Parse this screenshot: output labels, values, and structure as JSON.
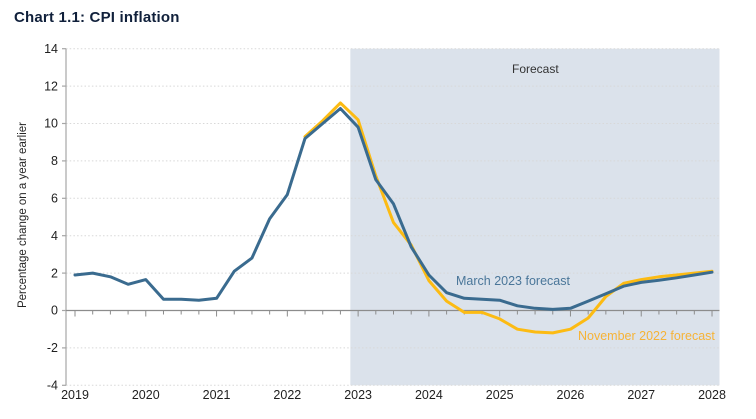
{
  "page": {
    "title": "Chart 1.1: CPI inflation"
  },
  "annotations": {
    "forecast_region_label": "Forecast",
    "series1_label": "March 2023 forecast",
    "series2_label": "November 2022 forecast"
  },
  "colors": {
    "title_text": "#10203b",
    "march_line": "#3a6b8f",
    "march_label_text": "#4a7699",
    "november_line": "#fcbb13",
    "november_label_text": "#f6b337",
    "forecast_shading": "#dbe2eb",
    "gridline": "#d8d8d8",
    "zero_axis": "#8c8c8c",
    "y_axis": "#a6a6a6",
    "tick_text": "#1f1f1f"
  },
  "chart_data": {
    "type": "line",
    "title": "Chart 1.1: CPI inflation",
    "xlabel": "",
    "ylabel": "Percentage change on a year earlier",
    "ylim": [
      -4,
      14
    ],
    "y_ticks": [
      14,
      12,
      10,
      8,
      6,
      4,
      2,
      0,
      -2,
      -4
    ],
    "x_ticks": [
      2019,
      2020,
      2021,
      2022,
      2023,
      2024,
      2025,
      2026,
      2027,
      2028
    ],
    "x_minor_tick_step": 0.25,
    "grid": "horizontal-dotted",
    "legend_position": "inline-annotations",
    "forecast_region": {
      "label": "Forecast",
      "x_start": 2022.89,
      "x_end": 2028.1
    },
    "series": [
      {
        "name": "November 2022 forecast",
        "points": [
          [
            2022.25,
            9.3
          ],
          [
            2022.5,
            10.15
          ],
          [
            2022.75,
            11.1
          ],
          [
            2023.0,
            10.2
          ],
          [
            2023.25,
            7.2
          ],
          [
            2023.5,
            4.7
          ],
          [
            2023.75,
            3.5
          ],
          [
            2024.0,
            1.6
          ],
          [
            2024.25,
            0.5
          ],
          [
            2024.5,
            -0.1
          ],
          [
            2024.75,
            -0.1
          ],
          [
            2025.0,
            -0.45
          ],
          [
            2025.25,
            -1.0
          ],
          [
            2025.5,
            -1.15
          ],
          [
            2025.75,
            -1.2
          ],
          [
            2026.0,
            -1.0
          ],
          [
            2026.25,
            -0.4
          ],
          [
            2026.5,
            0.75
          ],
          [
            2026.75,
            1.45
          ],
          [
            2027.0,
            1.65
          ],
          [
            2027.25,
            1.8
          ],
          [
            2027.5,
            1.9
          ],
          [
            2027.75,
            2.0
          ],
          [
            2028.0,
            2.1
          ]
        ]
      },
      {
        "name": "March 2023 forecast",
        "points": [
          [
            2019.0,
            1.9
          ],
          [
            2019.25,
            2.0
          ],
          [
            2019.5,
            1.8
          ],
          [
            2019.75,
            1.4
          ],
          [
            2020.0,
            1.65
          ],
          [
            2020.25,
            0.6
          ],
          [
            2020.5,
            0.6
          ],
          [
            2020.75,
            0.55
          ],
          [
            2021.0,
            0.65
          ],
          [
            2021.25,
            2.1
          ],
          [
            2021.5,
            2.8
          ],
          [
            2021.75,
            4.9
          ],
          [
            2022.0,
            6.2
          ],
          [
            2022.25,
            9.2
          ],
          [
            2022.5,
            10.0
          ],
          [
            2022.75,
            10.8
          ],
          [
            2023.0,
            9.8
          ],
          [
            2023.25,
            7.0
          ],
          [
            2023.5,
            5.7
          ],
          [
            2023.75,
            3.4
          ],
          [
            2024.0,
            1.9
          ],
          [
            2024.25,
            0.95
          ],
          [
            2024.5,
            0.65
          ],
          [
            2024.75,
            0.6
          ],
          [
            2025.0,
            0.55
          ],
          [
            2025.25,
            0.25
          ],
          [
            2025.5,
            0.12
          ],
          [
            2025.75,
            0.06
          ],
          [
            2026.0,
            0.12
          ],
          [
            2026.25,
            0.5
          ],
          [
            2026.5,
            0.9
          ],
          [
            2026.75,
            1.3
          ],
          [
            2027.0,
            1.5
          ],
          [
            2027.25,
            1.62
          ],
          [
            2027.5,
            1.75
          ],
          [
            2027.75,
            1.9
          ],
          [
            2028.0,
            2.05
          ]
        ]
      }
    ]
  }
}
